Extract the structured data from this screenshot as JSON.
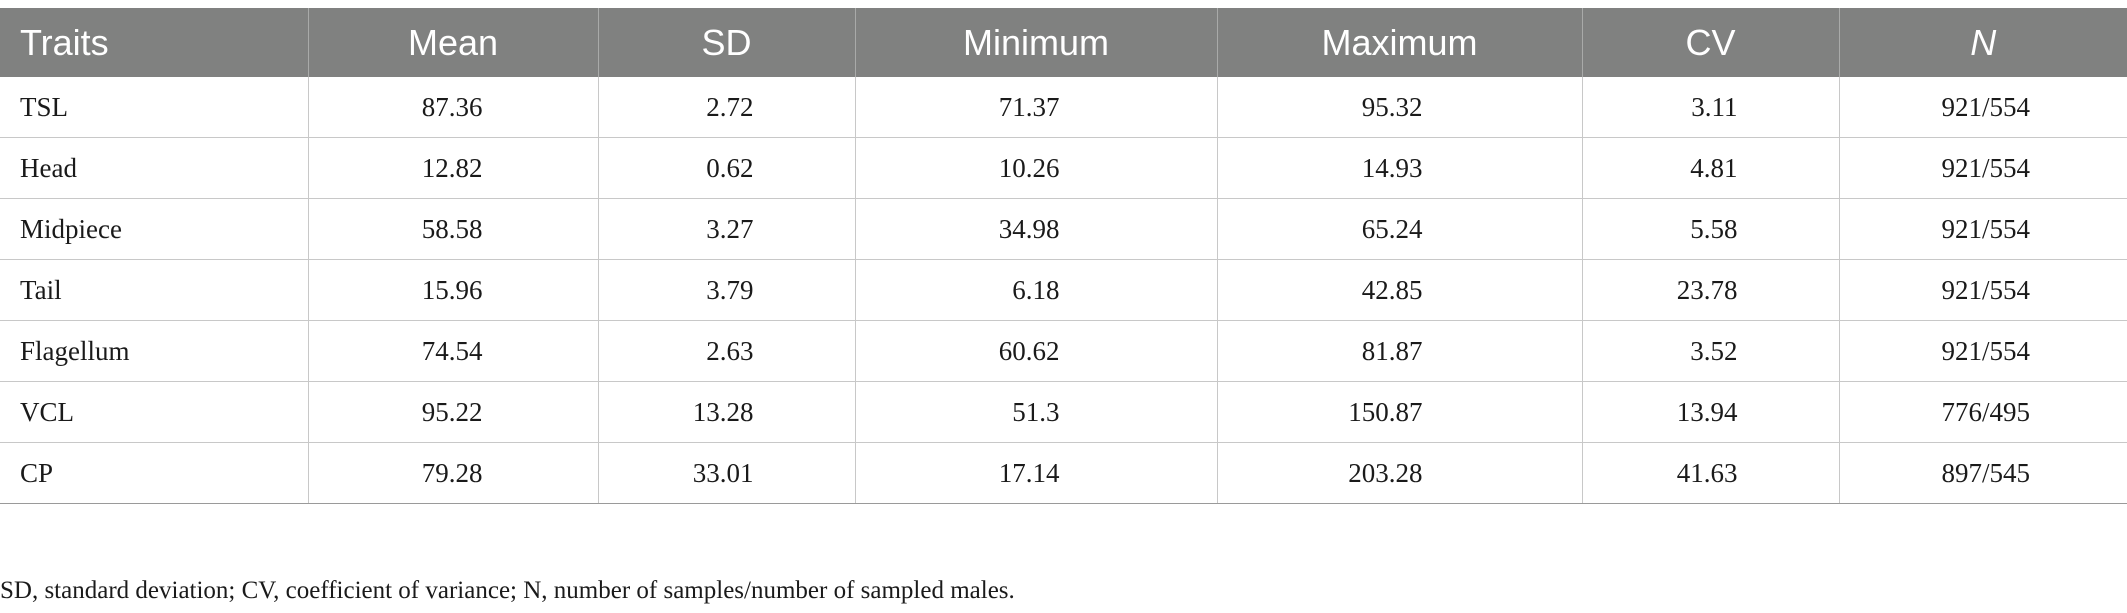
{
  "table": {
    "headers": [
      "Traits",
      "Mean",
      "SD",
      "Minimum",
      "Maximum",
      "CV",
      "N"
    ],
    "rows": [
      [
        "TSL",
        "87.36",
        "2.72",
        "71.37",
        "95.32",
        "3.11",
        "921/554"
      ],
      [
        "Head",
        "12.82",
        "0.62",
        "10.26",
        "14.93",
        "4.81",
        "921/554"
      ],
      [
        "Midpiece",
        "58.58",
        "3.27",
        "34.98",
        "65.24",
        "5.58",
        "921/554"
      ],
      [
        "Tail",
        "15.96",
        "3.79",
        "6.18",
        "42.85",
        "23.78",
        "921/554"
      ],
      [
        "Flagellum",
        "74.54",
        "2.63",
        "60.62",
        "81.87",
        "3.52",
        "921/554"
      ],
      [
        "VCL",
        "95.22",
        "13.28",
        "51.3",
        "150.87",
        "13.94",
        "776/495"
      ],
      [
        "CP",
        "79.28",
        "33.01",
        "17.14",
        "203.28",
        "41.63",
        "897/545"
      ]
    ]
  },
  "footnote": "SD, standard deviation; CV, coefficient of variance; N, number of samples/number of sampled males.",
  "colors": {
    "header_background": "#808180",
    "header_text": "#ffffff",
    "grid_lines": "#c8c8c8"
  }
}
